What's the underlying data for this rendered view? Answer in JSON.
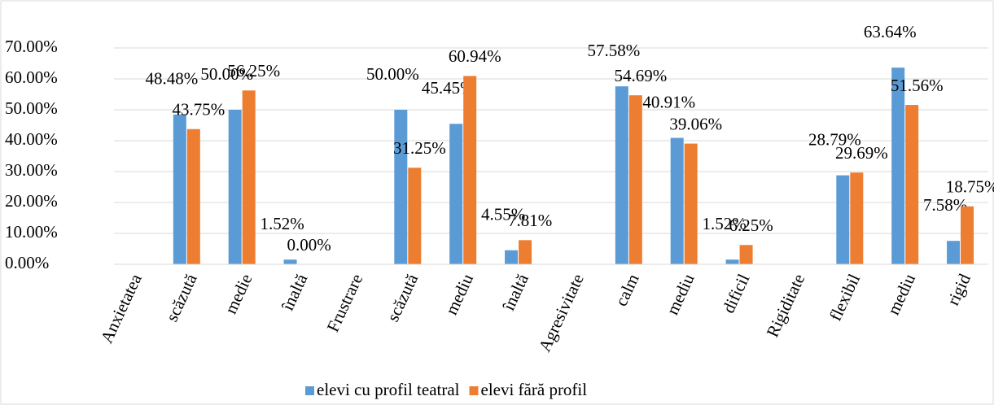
{
  "chart_data": {
    "type": "bar",
    "categories": [
      "Anxietatea",
      "scăzută",
      "medie",
      "înaltă",
      "Frustrare",
      "scăzută",
      "mediu",
      "înaltă",
      "Agresivitate",
      "calm",
      "mediu",
      "dificil",
      "Rigiditate",
      "flexibil",
      "mediu",
      "rigid"
    ],
    "series": [
      {
        "name": "elevi cu profil teatral",
        "color": "#5b9bd5",
        "values": [
          null,
          48.48,
          50.0,
          1.52,
          null,
          50.0,
          45.45,
          4.55,
          null,
          57.58,
          40.91,
          1.52,
          null,
          28.79,
          63.64,
          7.58
        ],
        "value_labels": [
          null,
          "48.48%",
          "50.00%",
          "1.52%",
          null,
          "50.00%",
          "45.45%",
          "4.55%",
          null,
          "57.58%",
          "40.91%",
          "1.52%",
          null,
          "28.79%",
          "63.64%",
          "7.58%"
        ]
      },
      {
        "name": "elevi fără profil",
        "color": "#ed7d31",
        "values": [
          null,
          43.75,
          56.25,
          0.0,
          null,
          31.25,
          60.94,
          7.81,
          null,
          54.69,
          39.06,
          6.25,
          null,
          29.69,
          51.56,
          18.75
        ],
        "value_labels": [
          null,
          "43.75%",
          "56.25%",
          "0.00%",
          null,
          "31.25%",
          "60.94%",
          "7.81%",
          null,
          "54.69%",
          "39.06%",
          "6.25%",
          null,
          "29.69%",
          "51.56%",
          "18.75%"
        ]
      }
    ],
    "ylim": [
      0,
      70
    ],
    "yticks": [
      {
        "value": 0,
        "label": "0.00%"
      },
      {
        "value": 10,
        "label": "10.00%"
      },
      {
        "value": 20,
        "label": "20.00%"
      },
      {
        "value": 30,
        "label": "30.00%"
      },
      {
        "value": 40,
        "label": "40.00%"
      },
      {
        "value": 50,
        "label": "50.00%"
      },
      {
        "value": 60,
        "label": "60.00%"
      },
      {
        "value": 70,
        "label": "70.00%"
      }
    ],
    "grid": true,
    "legend": "bottom"
  }
}
